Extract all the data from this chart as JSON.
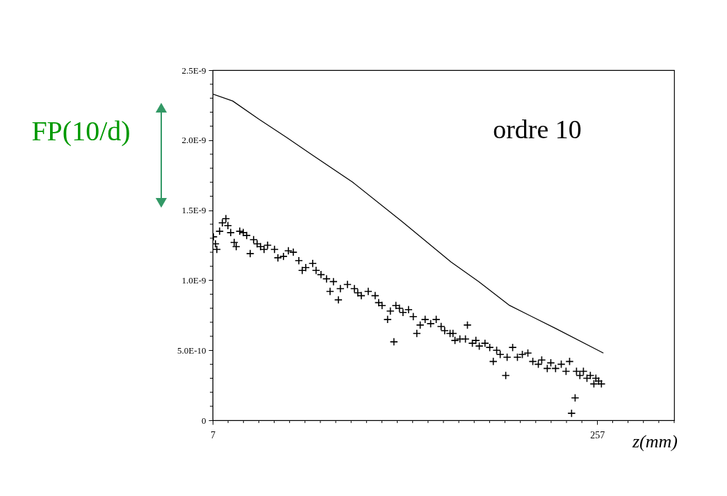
{
  "chart_data": {
    "type": "scatter",
    "xlabel": "z(mm)",
    "ylabel": "FP(10/d)",
    "annotations": [
      "ordre 10"
    ],
    "xlim": [
      7,
      307
    ],
    "ylim": [
      0,
      2.5e-09
    ],
    "xticks": [
      7,
      {
        "value": 17,
        "label": null
      },
      {
        "value": 27,
        "label": null
      },
      {
        "value": 37,
        "label": null
      },
      {
        "value": 47,
        "label": null
      },
      {
        "value": 57,
        "label": null
      },
      {
        "value": 67,
        "label": null
      },
      {
        "value": 77,
        "label": null
      },
      {
        "value": 87,
        "label": null
      },
      {
        "value": 97,
        "label": null
      },
      {
        "value": 107,
        "label": null
      },
      {
        "value": 117,
        "label": null
      },
      {
        "value": 127,
        "label": null
      },
      {
        "value": 137,
        "label": null
      },
      {
        "value": 147,
        "label": null
      },
      {
        "value": 157,
        "label": null
      },
      {
        "value": 167,
        "label": null
      },
      {
        "value": 177,
        "label": null
      },
      {
        "value": 187,
        "label": null
      },
      {
        "value": 197,
        "label": null
      },
      {
        "value": 207,
        "label": null
      },
      {
        "value": 217,
        "label": null
      },
      {
        "value": 227,
        "label": null
      },
      {
        "value": 237,
        "label": null
      },
      {
        "value": 247,
        "label": null
      },
      257,
      {
        "value": 267,
        "label": null
      },
      {
        "value": 277,
        "label": null
      },
      {
        "value": 287,
        "label": null
      },
      {
        "value": 297,
        "label": null
      },
      {
        "value": 307,
        "label": null
      }
    ],
    "yticks": [
      0,
      {
        "value": 1e-10,
        "label": null
      },
      {
        "value": 2e-10,
        "label": null
      },
      {
        "value": 3e-10,
        "label": null
      },
      {
        "value": 4e-10,
        "label": null
      },
      {
        "value": 5e-10,
        "label": "5.0E-10"
      },
      {
        "value": 6e-10,
        "label": null
      },
      {
        "value": 7e-10,
        "label": null
      },
      {
        "value": 8e-10,
        "label": null
      },
      {
        "value": 9e-10,
        "label": null
      },
      {
        "value": 1e-09,
        "label": "1.0E-9"
      },
      {
        "value": 1.1e-09,
        "label": null
      },
      {
        "value": 1.2e-09,
        "label": null
      },
      {
        "value": 1.3e-09,
        "label": null
      },
      {
        "value": 1.4e-09,
        "label": null
      },
      {
        "value": 1.5e-09,
        "label": "1.5E-9"
      },
      {
        "value": 1.6e-09,
        "label": null
      },
      {
        "value": 1.7e-09,
        "label": null
      },
      {
        "value": 1.8e-09,
        "label": null
      },
      {
        "value": 1.9e-09,
        "label": null
      },
      {
        "value": 2e-09,
        "label": "2.0E-9"
      },
      {
        "value": 2.1e-09,
        "label": null
      },
      {
        "value": 2.2e-09,
        "label": null
      },
      {
        "value": 2.3e-09,
        "label": null
      },
      {
        "value": 2.4e-09,
        "label": null
      },
      {
        "value": 2.5e-09,
        "label": "2.5E-9"
      }
    ],
    "grid": false,
    "series": [
      {
        "type": "line",
        "color": "#000000",
        "marker": "none",
        "line_style": "solid",
        "x": [
          7,
          20,
          37,
          55,
          71,
          98,
          130,
          162,
          180,
          200,
          230,
          261
        ],
        "values": [
          2.33e-09,
          2.28e-09,
          2.15e-09,
          2.02e-09,
          1.9e-09,
          1.7e-09,
          1.42e-09,
          1.13e-09,
          9.9e-10,
          8.2e-10,
          6.55e-10,
          4.8e-10
        ]
      },
      {
        "color": "#000000",
        "marker": "cross",
        "x": [
          7.5,
          8.8,
          9.7,
          11.5,
          13.3,
          15.6,
          16.9,
          18.7,
          21.0,
          22.3,
          24.6,
          26.9,
          29.1,
          31.4,
          33.6,
          35.9,
          38.1,
          40.4,
          42.7,
          47.2,
          49.4,
          53.0,
          56.2,
          59.4,
          63.0,
          65.2,
          67.5,
          72.0,
          74.2,
          77.4,
          81.0,
          83.3,
          85.5,
          88.7,
          90.0,
          94.6,
          99.1,
          101.3,
          103.6,
          108.1,
          112.6,
          114.9,
          117.1,
          120.7,
          122.5,
          124.8,
          126.1,
          128.4,
          130.7,
          134.3,
          137.4,
          139.7,
          141.9,
          145.1,
          148.7,
          152.3,
          155.5,
          157.8,
          161.3,
          163.2,
          164.5,
          167.7,
          171.3,
          172.6,
          175.8,
          178.1,
          180.3,
          184.0,
          187.1,
          189.4,
          191.6,
          193.9,
          197.5,
          198.4,
          202.0,
          205.1,
          208.3,
          211.9,
          215.1,
          218.7,
          220.9,
          224.5,
          226.8,
          229.9,
          233.6,
          236.7,
          239.0,
          240.3,
          242.6,
          243.5,
          245.7,
          248.0,
          250.3,
          252.5,
          254.8,
          256.1,
          257.9,
          259.7
        ],
        "values": [
          1.31e-09,
          1.26e-09,
          1.22e-09,
          1.35e-09,
          1.41e-09,
          1.44e-09,
          1.39e-09,
          1.34e-09,
          1.27e-09,
          1.24e-09,
          1.35e-09,
          1.34e-09,
          1.32e-09,
          1.19e-09,
          1.29e-09,
          1.26e-09,
          1.24e-09,
          1.22e-09,
          1.25e-09,
          1.22e-09,
          1.16e-09,
          1.17e-09,
          1.21e-09,
          1.2e-09,
          1.14e-09,
          1.07e-09,
          1.09e-09,
          1.12e-09,
          1.07e-09,
          1.04e-09,
          1.01e-09,
          9.2e-10,
          9.9e-10,
          8.6e-10,
          9.4e-10,
          9.7e-10,
          9.4e-10,
          9.1e-10,
          8.9e-10,
          9.2e-10,
          8.9e-10,
          8.4e-10,
          8.2e-10,
          7.2e-10,
          7.8e-10,
          5.6e-10,
          8.2e-10,
          8e-10,
          7.7e-10,
          7.9e-10,
          7.4e-10,
          6.2e-10,
          6.8e-10,
          7.2e-10,
          6.9e-10,
          7.2e-10,
          6.7e-10,
          6.4e-10,
          6.2e-10,
          6.2e-10,
          5.7e-10,
          5.8e-10,
          5.8e-10,
          6.8e-10,
          5.5e-10,
          5.7e-10,
          5.3e-10,
          5.5e-10,
          5.2e-10,
          4.2e-10,
          5e-10,
          4.7e-10,
          3.2e-10,
          4.5e-10,
          5.2e-10,
          4.5e-10,
          4.7e-10,
          4.8e-10,
          4.2e-10,
          4e-10,
          4.3e-10,
          3.7e-10,
          4.1e-10,
          3.7e-10,
          4e-10,
          3.5e-10,
          4.2e-10,
          5e-11,
          1.6e-10,
          3.5e-10,
          3.2e-10,
          3.5e-10,
          3e-10,
          3.2e-10,
          2.6e-10,
          3e-10,
          2.8e-10,
          2.6e-10
        ]
      }
    ]
  }
}
